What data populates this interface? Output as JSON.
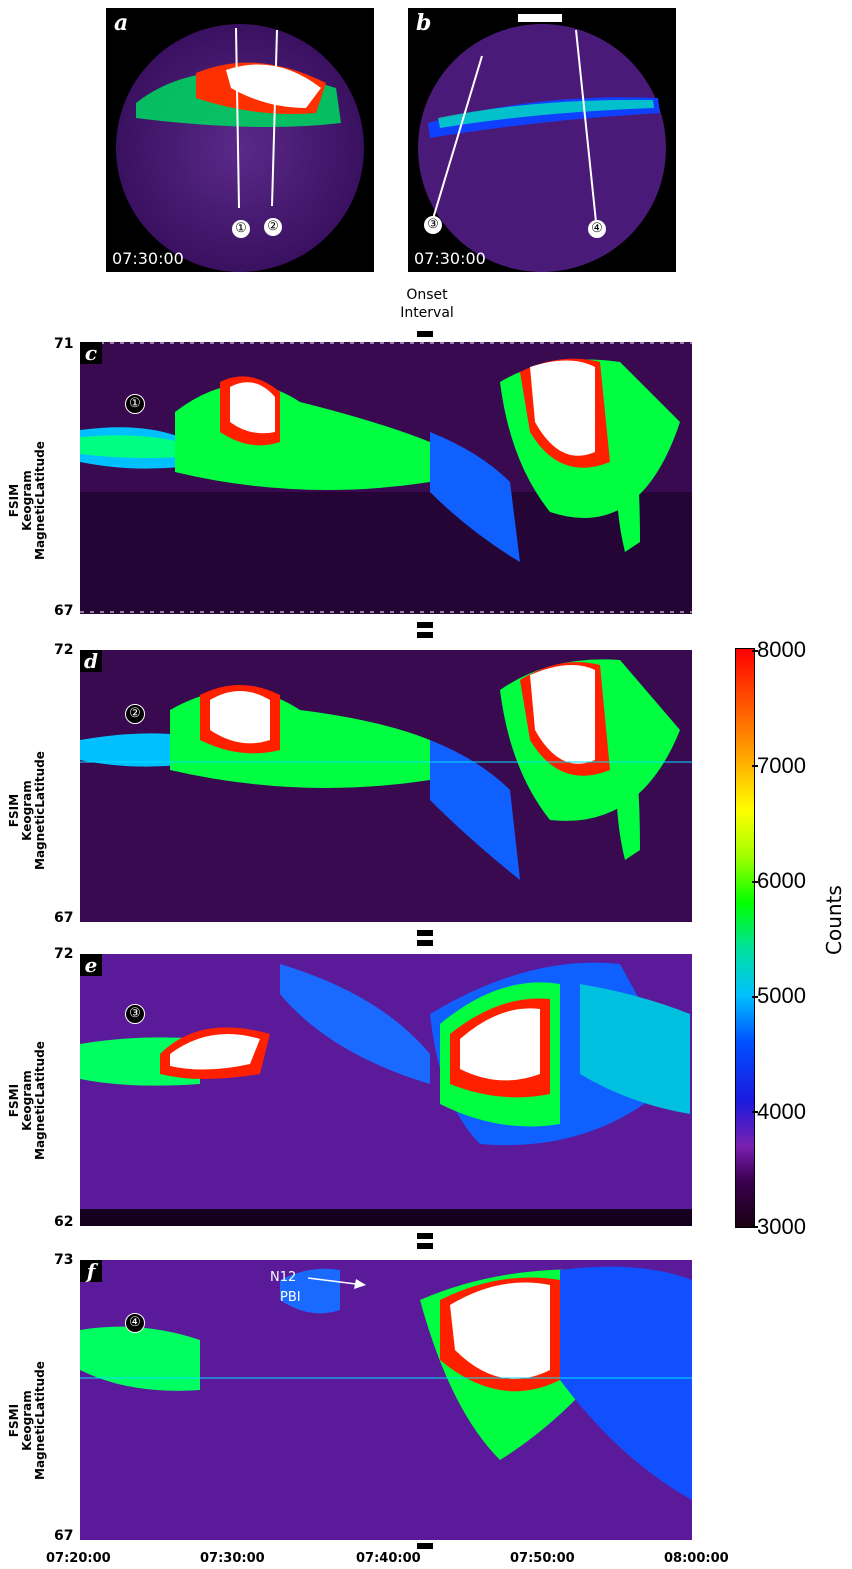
{
  "panels_allsky": [
    {
      "letter": "a",
      "time": "07:30:00",
      "markers": [
        "①",
        "②"
      ]
    },
    {
      "letter": "b",
      "time": "07:30:00",
      "markers": [
        "③",
        "④"
      ]
    }
  ],
  "onset": {
    "line1": "Onset",
    "line2": "Interval"
  },
  "keograms": [
    {
      "letter": "c",
      "marker": "①",
      "ylabel": "FSIM\nKeogram\nMagneticLatitude",
      "ytop": "71",
      "ybottom": "67"
    },
    {
      "letter": "d",
      "marker": "②",
      "ylabel": "FSIM\nKeogram\nMagneticLatitude",
      "ytop": "72",
      "ybottom": "67"
    },
    {
      "letter": "e",
      "marker": "③",
      "ylabel": "FSMI\nKeogram\nMagneticLatitude",
      "ytop": "72",
      "ybottom": "62"
    },
    {
      "letter": "f",
      "marker": "④",
      "ylabel": "FSMI\nKeogram\nMagneticLatitude",
      "ytop": "73",
      "ybottom": "67"
    }
  ],
  "annotation": {
    "n12": "N12",
    "pbi": "PBI"
  },
  "xaxis_ticks": [
    "07:20:00",
    "07:30:00",
    "07:40:00",
    "07:50:00",
    "08:00:00"
  ],
  "colorbar": {
    "title": "Counts",
    "ticks": [
      "8000",
      "7000",
      "6000",
      "5000",
      "4000",
      "3000"
    ]
  },
  "colors": {
    "background": "#1a0520",
    "violet": "#7a20b0",
    "blue": "#1a1ae0",
    "green": "#00ff00",
    "red": "#ff0000",
    "white": "#ffffff"
  }
}
